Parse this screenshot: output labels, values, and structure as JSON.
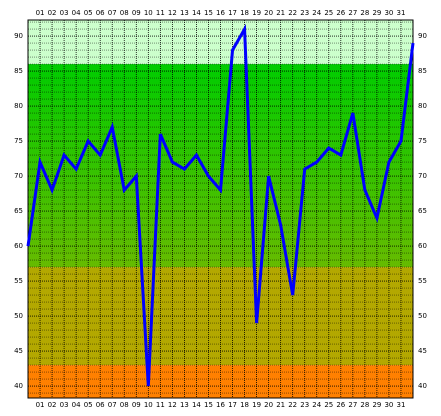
{
  "chart_data": {
    "type": "line",
    "x": [
      0,
      1,
      2,
      3,
      4,
      5,
      6,
      7,
      8,
      9,
      10,
      11,
      12,
      13,
      14,
      15,
      16,
      17,
      18,
      19,
      20,
      21,
      22,
      23,
      24,
      25,
      26,
      27,
      28,
      29,
      30,
      31,
      32
    ],
    "series": [
      {
        "color": "#0000ff",
        "values": [
          60,
          72,
          68,
          73,
          71,
          75,
          73,
          77,
          68,
          70,
          40,
          76,
          72,
          71,
          73,
          70,
          68,
          88,
          91,
          49,
          70,
          63,
          53,
          71,
          72,
          74,
          73,
          79,
          68,
          64,
          72,
          75,
          89
        ]
      }
    ],
    "xlim": [
      0,
      32
    ],
    "xticks": [
      {
        "value": 1,
        "label": "01"
      },
      {
        "value": 2,
        "label": "02"
      },
      {
        "value": 3,
        "label": "03"
      },
      {
        "value": 4,
        "label": "04"
      },
      {
        "value": 5,
        "label": "05"
      },
      {
        "value": 6,
        "label": "06"
      },
      {
        "value": 7,
        "label": "07"
      },
      {
        "value": 8,
        "label": "08"
      },
      {
        "value": 9,
        "label": "09"
      },
      {
        "value": 10,
        "label": "10"
      },
      {
        "value": 11,
        "label": "11"
      },
      {
        "value": 12,
        "label": "12"
      },
      {
        "value": 13,
        "label": "13"
      },
      {
        "value": 14,
        "label": "14"
      },
      {
        "value": 15,
        "label": "15"
      },
      {
        "value": 16,
        "label": "16"
      },
      {
        "value": 17,
        "label": "17"
      },
      {
        "value": 18,
        "label": "18"
      },
      {
        "value": 19,
        "label": "19"
      },
      {
        "value": 20,
        "label": "20"
      },
      {
        "value": 21,
        "label": "21"
      },
      {
        "value": 22,
        "label": "22"
      },
      {
        "value": 23,
        "label": "23"
      },
      {
        "value": 24,
        "label": "24"
      },
      {
        "value": 25,
        "label": "25"
      },
      {
        "value": 26,
        "label": "26"
      },
      {
        "value": 27,
        "label": "27"
      },
      {
        "value": 28,
        "label": "28"
      },
      {
        "value": 29,
        "label": "29"
      },
      {
        "value": 30,
        "label": "30"
      },
      {
        "value": 31,
        "label": "31"
      }
    ],
    "ylim": [
      38.3,
      92.3
    ],
    "yticks": [
      40,
      45,
      50,
      55,
      60,
      65,
      70,
      75,
      80,
      85,
      90
    ],
    "grid": true,
    "bands": [
      {
        "from": 86,
        "to": 92.3,
        "color": "#ccffcc"
      },
      {
        "from": 57,
        "to": 86,
        "color": "#00cc00",
        "color_end": "#66bb00"
      },
      {
        "from": 43,
        "to": 57,
        "color": "#b3a800"
      },
      {
        "from": 38.3,
        "to": 43,
        "color": "#ff8000"
      }
    ]
  }
}
